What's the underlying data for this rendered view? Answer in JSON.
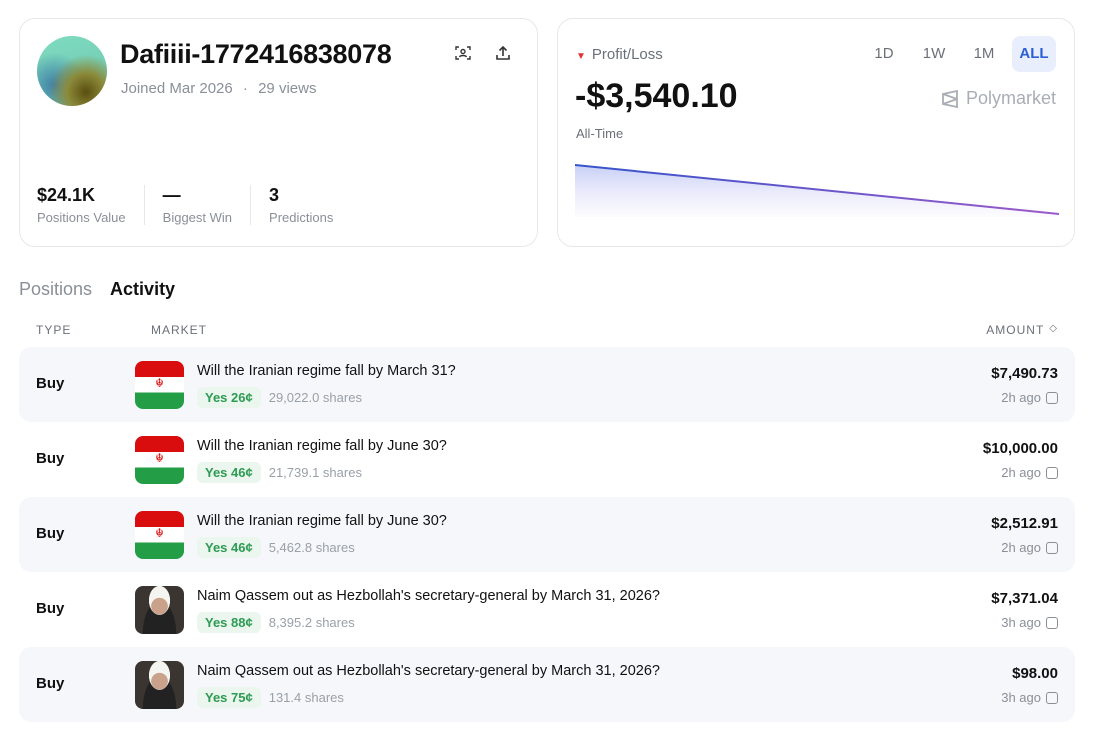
{
  "profile": {
    "username": "Dafiiii-1772416838078",
    "joined": "Joined Mar 2026",
    "views": "29 views",
    "separator": "·",
    "stats": [
      {
        "value": "$24.1K",
        "label": "Positions Value"
      },
      {
        "value": "—",
        "label": "Biggest Win"
      },
      {
        "value": "3",
        "label": "Predictions"
      }
    ]
  },
  "pnl": {
    "label": "Profit/Loss",
    "value": "-$3,540.10",
    "period": "All-Time",
    "brand": "Polymarket",
    "ranges": [
      "1D",
      "1W",
      "1M",
      "ALL"
    ],
    "selected_range": "ALL",
    "trend": "down",
    "colors": {
      "line_start": "#3553c9",
      "line_end": "#9b59c9",
      "loss": "#d33333"
    }
  },
  "tabs": [
    "Positions",
    "Activity"
  ],
  "active_tab": "Activity",
  "table": {
    "headers": {
      "type": "TYPE",
      "market": "MARKET",
      "amount": "AMOUNT"
    },
    "rows": [
      {
        "type": "Buy",
        "market": "Will the Iranian regime fall by March 31?",
        "outcome": "Yes 26¢",
        "shares": "29,022.0 shares",
        "amount": "$7,490.73",
        "time": "2h ago",
        "image": "iran-flag"
      },
      {
        "type": "Buy",
        "market": "Will the Iranian regime fall by June 30?",
        "outcome": "Yes 46¢",
        "shares": "21,739.1 shares",
        "amount": "$10,000.00",
        "time": "2h ago",
        "image": "iran-flag"
      },
      {
        "type": "Buy",
        "market": "Will the Iranian regime fall by June 30?",
        "outcome": "Yes 46¢",
        "shares": "5,462.8 shares",
        "amount": "$2,512.91",
        "time": "2h ago",
        "image": "iran-flag"
      },
      {
        "type": "Buy",
        "market": "Naim Qassem out as Hezbollah's secretary-general by March 31, 2026?",
        "outcome": "Yes 88¢",
        "shares": "8,395.2 shares",
        "amount": "$7,371.04",
        "time": "3h ago",
        "image": "person-portrait"
      },
      {
        "type": "Buy",
        "market": "Naim Qassem out as Hezbollah's secretary-general by March 31, 2026?",
        "outcome": "Yes 75¢",
        "shares": "131.4 shares",
        "amount": "$98.00",
        "time": "3h ago",
        "image": "person-portrait"
      }
    ]
  }
}
